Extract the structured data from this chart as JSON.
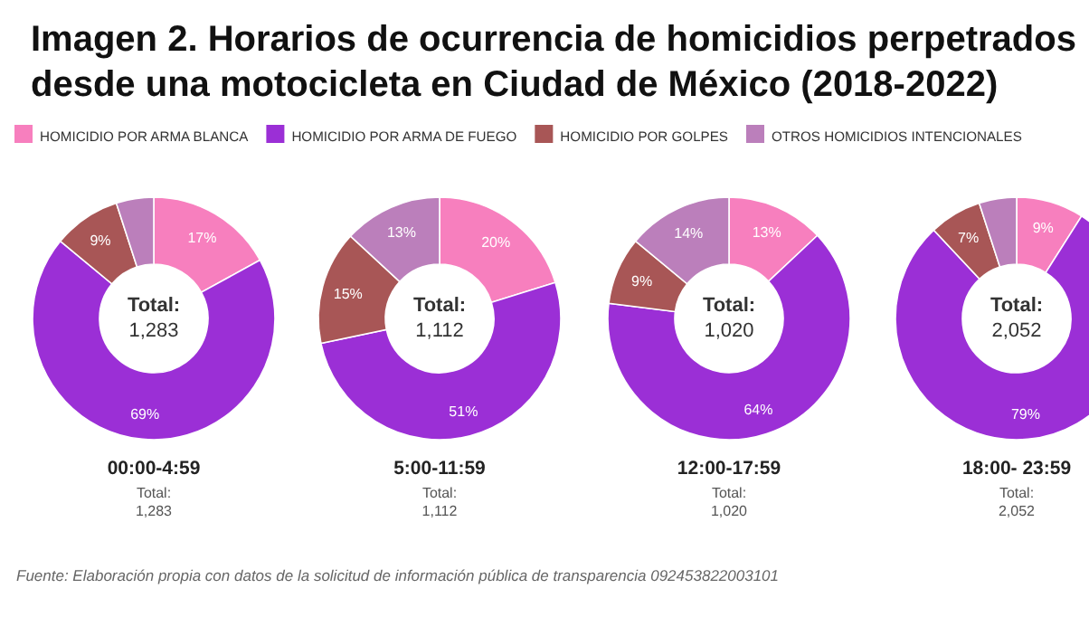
{
  "chart_data": [
    {
      "type": "other",
      "title": "Imagen 2. Horarios de ocurrencia de homicidios perpetrados desde una motocicleta en Ciudad de México (2018-2022)",
      "annotations": [
        "Fuente: Elaboración propia con datos de la solicitud de información pública de transparencia 092453822003101"
      ]
    },
    {
      "type": "donut",
      "title": "00:00-4:59",
      "categories": [
        "HOMICIDIO POR ARMA BLANCA",
        "HOMICIDIO POR ARMA DE FUEGO",
        "HOMICIDIO POR GOLPES",
        "OTROS HOMICIDIOS INTENCIONALES"
      ],
      "values": [
        17,
        69,
        9,
        5
      ],
      "value_labels": [
        "17%",
        "69%",
        "9%",
        null
      ],
      "colors": [
        "#f77fbe",
        "#9b2fd6",
        "#a85656",
        "#bb7fbb"
      ],
      "legend": "top",
      "annotations": [
        "Total:\n1,283",
        "Total:\n1,283"
      ]
    },
    {
      "type": "donut",
      "title": "5:00-11:59",
      "categories": [
        null,
        null,
        null,
        null
      ],
      "values": [
        20,
        51,
        15,
        13
      ],
      "value_labels": [
        "20%",
        "51%",
        "15%",
        "13%"
      ],
      "colors": [
        "#f77fbe",
        "#9b2fd6",
        "#a85656",
        "#bb7fbb"
      ],
      "annotations": [
        "Total:\n1,112",
        "Total:\n1,112"
      ]
    },
    {
      "type": "donut",
      "title": "12:00-17:59",
      "categories": [
        null,
        null,
        null,
        null
      ],
      "values": [
        13,
        64,
        9,
        14
      ],
      "value_labels": [
        "13%",
        "64%",
        "9%",
        "14%"
      ],
      "colors": [
        "#f77fbe",
        "#9b2fd6",
        "#a85656",
        "#bb7fbb"
      ],
      "annotations": [
        "Total:\n1,020",
        "Total:\n1,020"
      ]
    },
    {
      "type": "donut",
      "title": "18:00- 23:59",
      "categories": [
        null,
        null,
        null,
        null
      ],
      "values": [
        9,
        79,
        7,
        5
      ],
      "value_labels": [
        "9%",
        "79%",
        "7%",
        null
      ],
      "colors": [
        "#f77fbe",
        "#9b2fd6",
        "#a85656",
        "#bb7fbb"
      ],
      "annotations": [
        "Total:\n2,052",
        "Total:\n2,052"
      ]
    }
  ]
}
